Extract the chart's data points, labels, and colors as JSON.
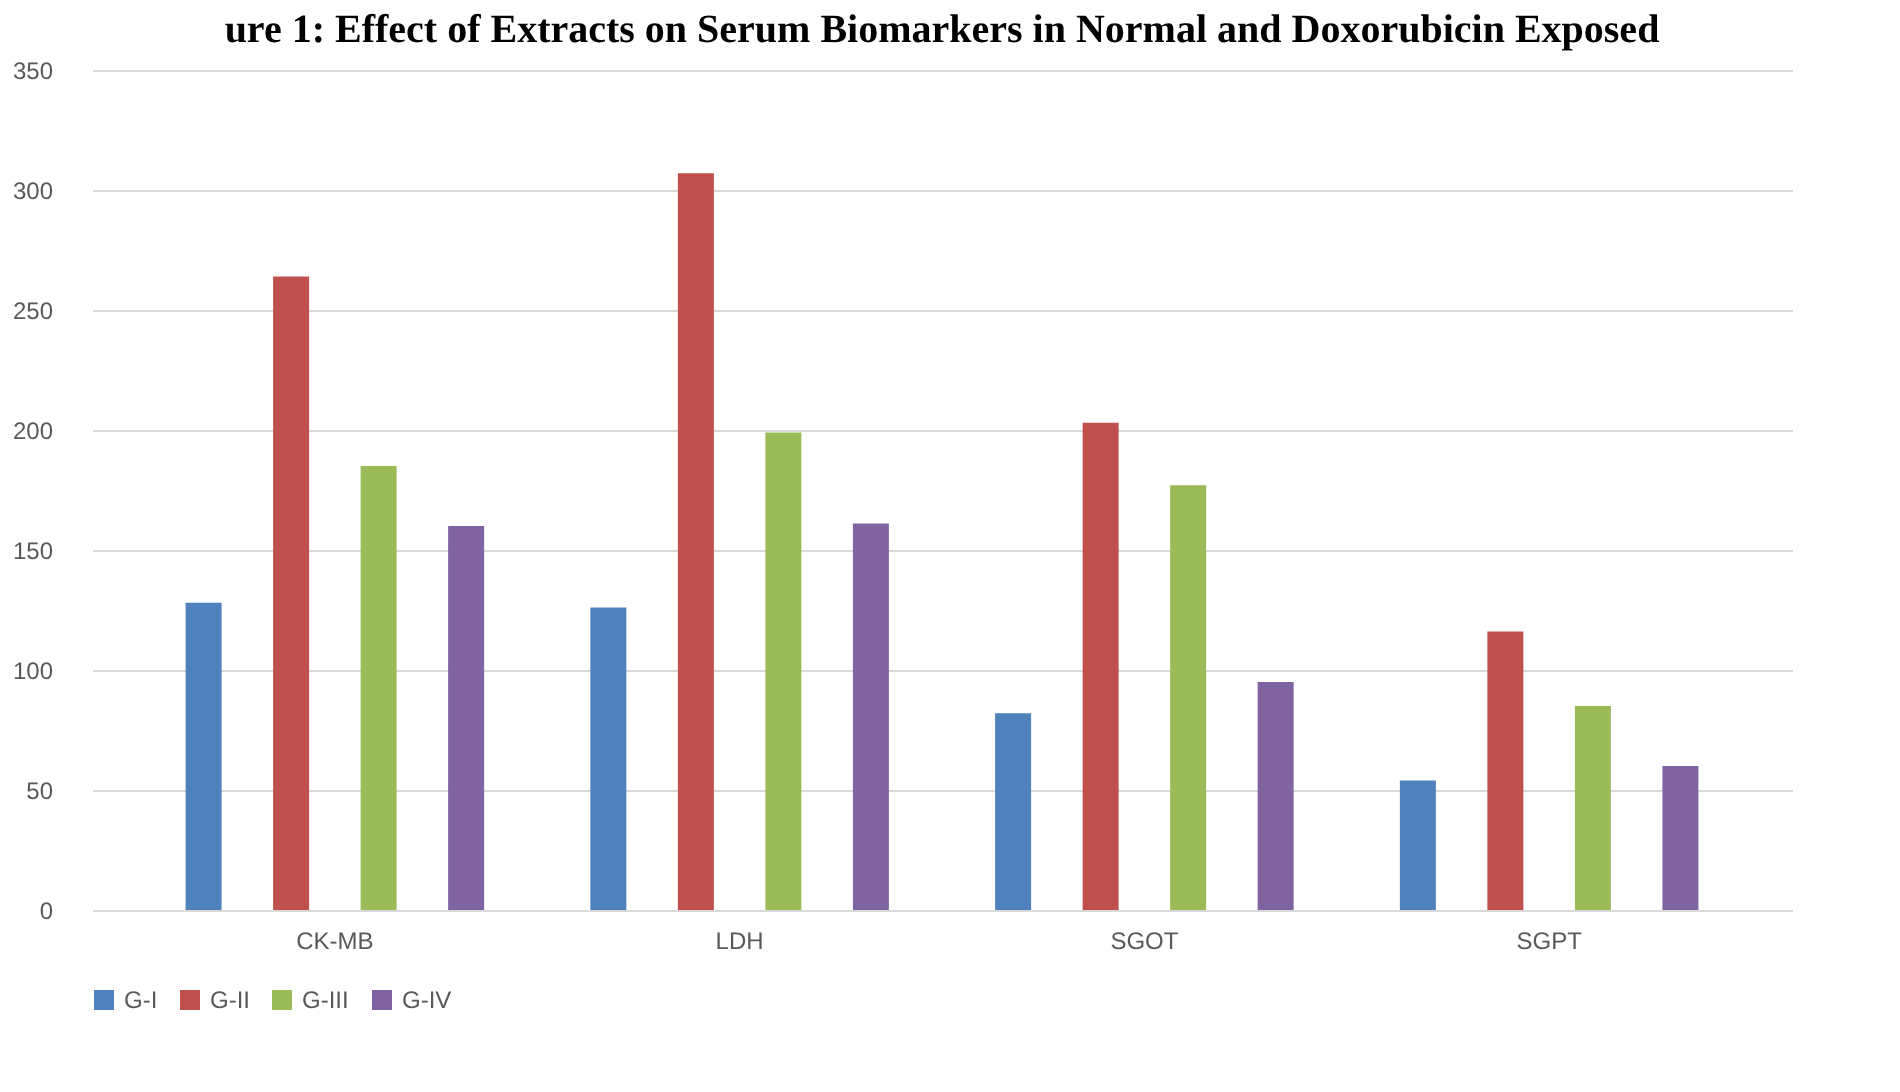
{
  "chart_data": {
    "type": "bar",
    "title": "ure 1: Effect of Extracts on Serum Biomarkers in Normal and Doxorubicin Exposed",
    "categories": [
      "CK-MB",
      "LDH",
      "SGOT",
      "SGPT"
    ],
    "series": [
      {
        "name": "G-I",
        "color": "#4f81bd",
        "values": [
          128,
          126,
          82,
          54
        ]
      },
      {
        "name": "G-II",
        "color": "#c0504d",
        "values": [
          264,
          307,
          203,
          116
        ]
      },
      {
        "name": "G-III",
        "color": "#9bbb59",
        "values": [
          185,
          199,
          177,
          85
        ]
      },
      {
        "name": "G-IV",
        "color": "#8064a2",
        "values": [
          160,
          161,
          95,
          60
        ]
      }
    ],
    "ylim": [
      0,
      350
    ],
    "yticks": [
      0,
      50,
      100,
      150,
      200,
      250,
      300,
      350
    ],
    "grid": "y",
    "legend": "bottom"
  }
}
